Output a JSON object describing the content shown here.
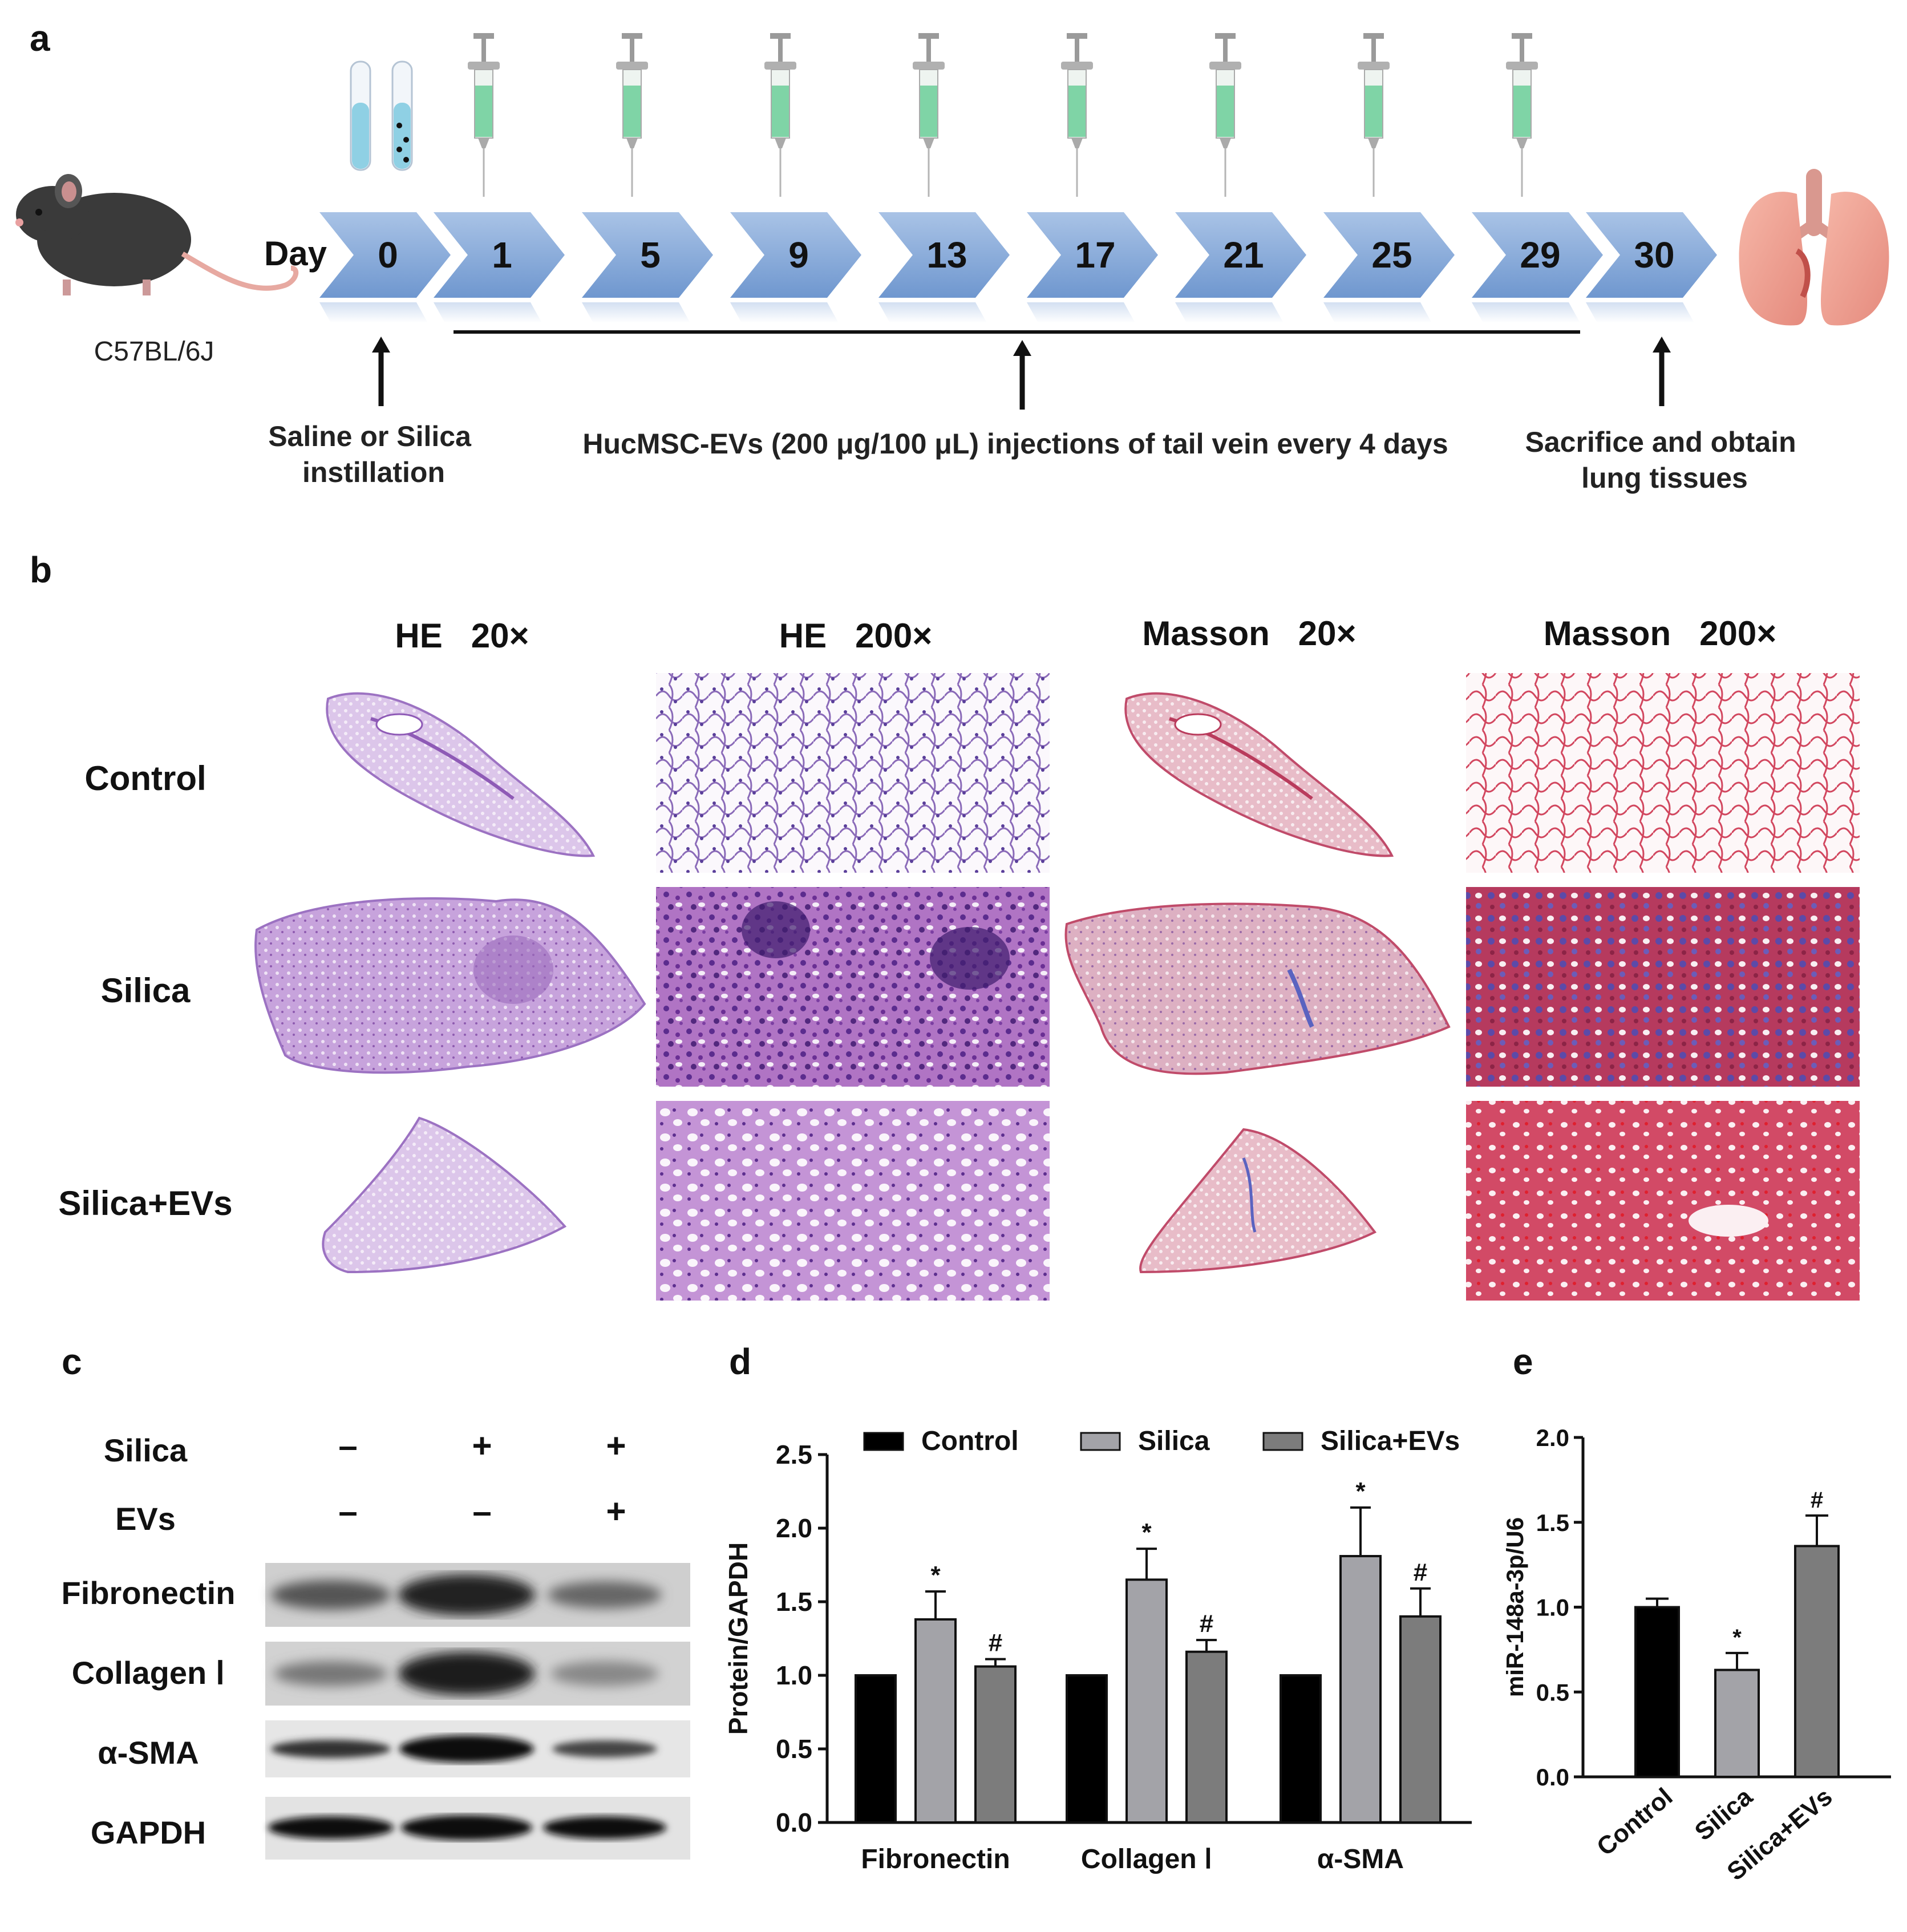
{
  "panels": {
    "a": "a",
    "b": "b",
    "c": "c",
    "d": "d",
    "e": "e"
  },
  "timeline": {
    "strain": "C57BL/6J",
    "day_label": "Day",
    "days": [
      "0",
      "1",
      "5",
      "9",
      "13",
      "17",
      "21",
      "25",
      "29",
      "30"
    ],
    "annotations": {
      "instillation": [
        "Saline or Silica",
        "instillation"
      ],
      "injection": "HucMSC-EVs (200 μg/100 μL) injections of tail vein every 4 days",
      "sacrifice": [
        "Sacrifice and obtain",
        "lung tissues"
      ]
    },
    "colors": {
      "chevron": "#8faed8",
      "chevron_dark": "#5c86c4",
      "syringe_fluid": "#7fd4a6",
      "tube_fluid": "#8fd0e4"
    }
  },
  "histology": {
    "columns": [
      "HE   20×",
      "HE   200×",
      "Masson   20×",
      "Masson   200×"
    ],
    "rows": [
      "Control",
      "Silica",
      "Silica+EVs"
    ]
  },
  "western": {
    "conditions": [
      {
        "label": "Silica",
        "values": [
          "–",
          "+",
          "+"
        ]
      },
      {
        "label": "EVs",
        "values": [
          "–",
          "–",
          "+"
        ]
      }
    ],
    "bands": [
      "Fibronectin",
      "Collagen Ⅰ",
      "α-SMA",
      "GAPDH"
    ]
  },
  "chart_data": [
    {
      "type": "bar",
      "panel": "d",
      "ylabel": "Protein/GAPDH",
      "categories": [
        "Fibronectin",
        "Collagen Ⅰ",
        "α-SMA"
      ],
      "ylim": [
        0,
        2.5
      ],
      "yticks": [
        "0.0",
        "0.5",
        "1.0",
        "1.5",
        "2.0",
        "2.5"
      ],
      "series": [
        {
          "name": "Control",
          "values": [
            1.0,
            1.0,
            1.0
          ],
          "errors": [
            0,
            0,
            0
          ],
          "marks": [
            "",
            "",
            ""
          ],
          "color": "#000000"
        },
        {
          "name": "Silica",
          "values": [
            1.38,
            1.65,
            1.81
          ],
          "errors": [
            0.19,
            0.21,
            0.33
          ],
          "marks": [
            "*",
            "*",
            "*"
          ],
          "color": "#a3a3a8"
        },
        {
          "name": "Silica+EVs",
          "values": [
            1.06,
            1.16,
            1.4
          ],
          "errors": [
            0.05,
            0.08,
            0.19
          ],
          "marks": [
            "#",
            "#",
            "#"
          ],
          "color": "#7c7c7c"
        }
      ]
    },
    {
      "type": "bar",
      "panel": "e",
      "ylabel": "miR-148a-3p/U6",
      "categories": [
        "Control",
        "Silica",
        "Silica+EVs"
      ],
      "ylim": [
        0,
        2.0
      ],
      "yticks": [
        "0.0",
        "0.5",
        "1.0",
        "1.5",
        "2.0"
      ],
      "values": [
        1.0,
        0.63,
        1.36
      ],
      "errors": [
        0.05,
        0.1,
        0.18
      ],
      "marks": [
        "",
        "*",
        "#"
      ],
      "colors": [
        "#000000",
        "#a3a3a8",
        "#7c7c7c"
      ]
    }
  ]
}
